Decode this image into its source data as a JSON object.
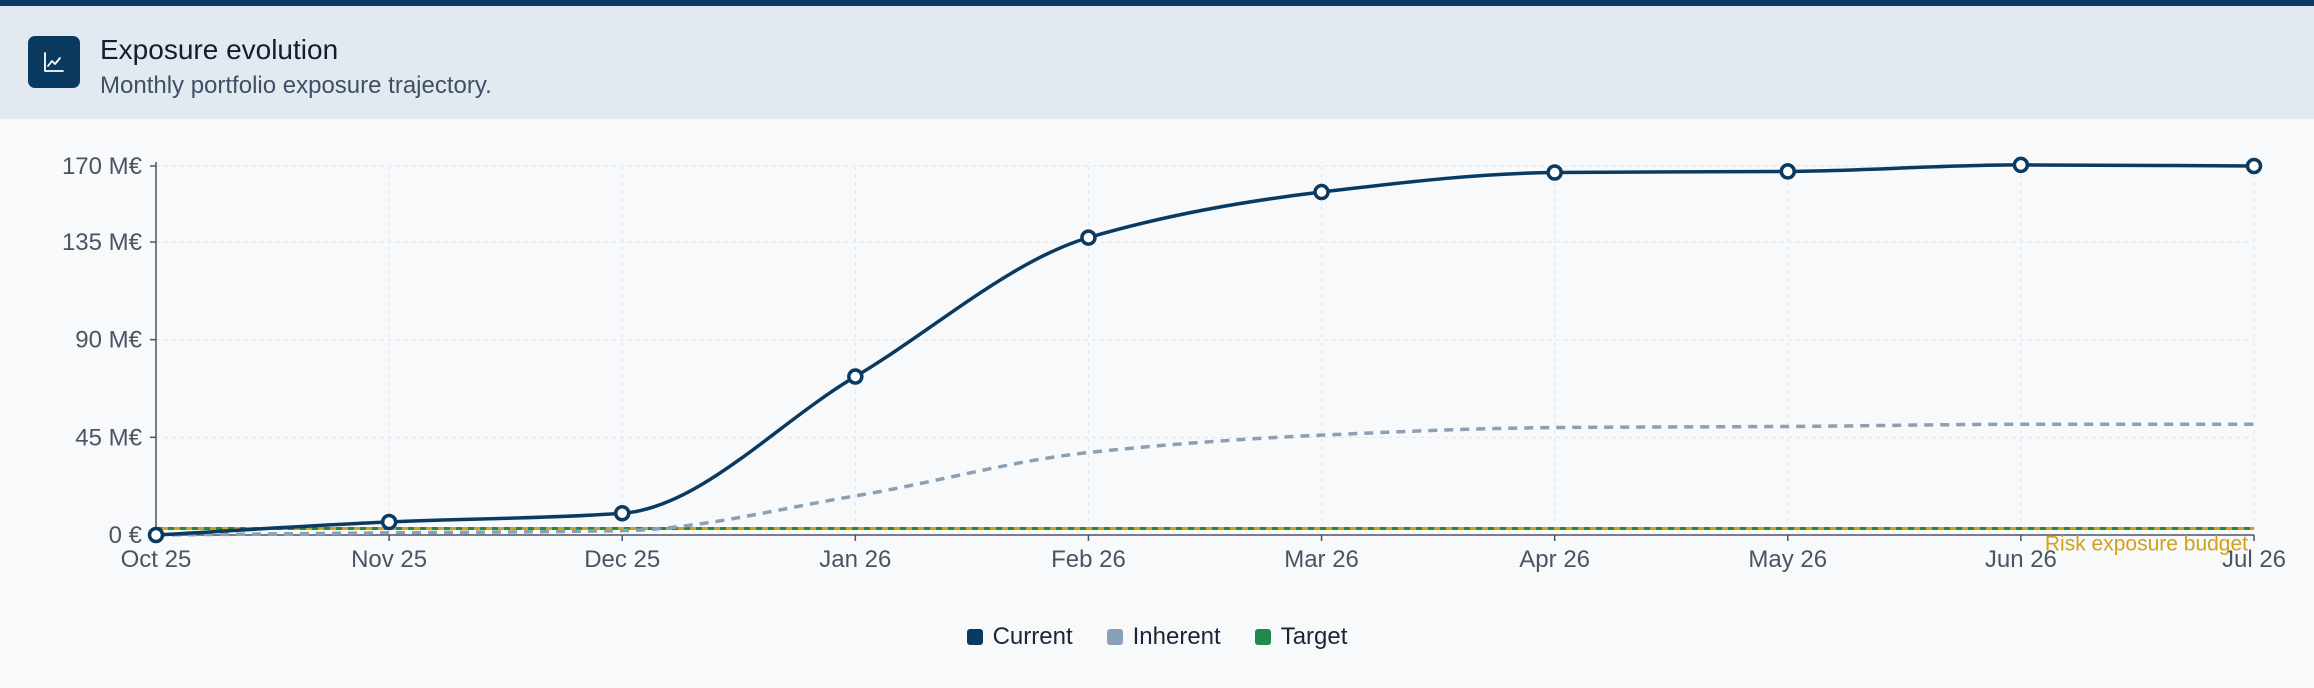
{
  "header": {
    "title": "Exposure evolution",
    "subtitle": "Monthly portfolio exposure trajectory.",
    "icon": "line-chart-icon"
  },
  "colors": {
    "accent": "#0b3a60",
    "current": "#0b3a60",
    "inherent": "#8aa0b6",
    "target": "#1f8a4c",
    "budget": "#d4a017"
  },
  "chart_data": {
    "type": "line",
    "categories": [
      "Oct 25",
      "Nov 25",
      "Dec 25",
      "Jan 26",
      "Feb 26",
      "Mar 26",
      "Apr 26",
      "May 26",
      "Jun 26",
      "Jul 26"
    ],
    "y_ticks": [
      "0 €",
      "45 M€",
      "90 M€",
      "135 M€",
      "170 M€"
    ],
    "y_tick_values": [
      0,
      45,
      90,
      135,
      170
    ],
    "ylim": [
      0,
      170
    ],
    "grid": true,
    "legend_position": "bottom-center",
    "series": [
      {
        "name": "Current",
        "style": "solid-with-markers",
        "color": "#0b3a60",
        "values": [
          0,
          6,
          10,
          73,
          137,
          158,
          167,
          167.5,
          170.5,
          170
        ]
      },
      {
        "name": "Inherent",
        "style": "dashed",
        "color": "#8aa0b6",
        "values": [
          0,
          1,
          2,
          18,
          38,
          46,
          49.5,
          50,
          51,
          51
        ]
      },
      {
        "name": "Target",
        "style": "dashed",
        "color": "#1f8a4c",
        "values": [
          3,
          3,
          3,
          3,
          3,
          3,
          3,
          3,
          3,
          3
        ]
      }
    ],
    "reference_line": {
      "label": "Risk exposure budget",
      "value": 3,
      "color": "#d4a017"
    }
  }
}
